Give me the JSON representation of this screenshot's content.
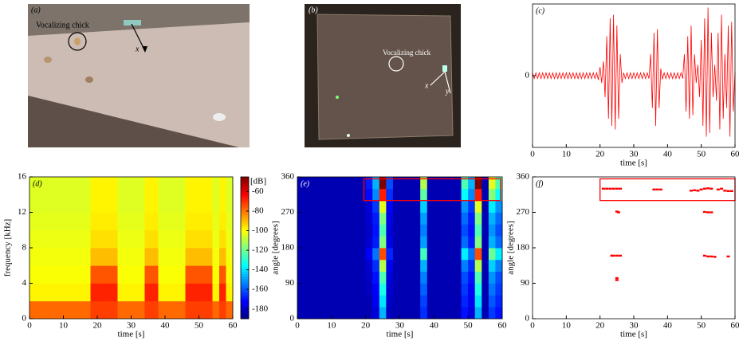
{
  "photos": [
    {
      "panel_label": "(a)",
      "annotation": "Vocalizing chick",
      "axis_labels": [
        "x"
      ]
    },
    {
      "panel_label": "(b)",
      "annotation": "Vocalizing chick",
      "axis_labels": [
        "x",
        "y"
      ]
    }
  ],
  "chart_data": [
    {
      "type": "line",
      "panel_label": "(c)",
      "xlabel": "time [s]",
      "color": "#ff0000",
      "xlim": [
        0,
        60
      ],
      "xticks": [
        0,
        10,
        20,
        30,
        40,
        50,
        60
      ],
      "ylim": [
        -1,
        1
      ],
      "yticks": [
        0
      ],
      "x": [
        0,
        0.5,
        1,
        1.5,
        2,
        2.5,
        3,
        3.5,
        4,
        4.5,
        5,
        5.5,
        6,
        6.5,
        7,
        7.5,
        8,
        8.5,
        9,
        9.5,
        10,
        10.5,
        11,
        11.5,
        12,
        12.5,
        13,
        13.5,
        14,
        14.5,
        15,
        15.5,
        16,
        16.5,
        17,
        17.5,
        18,
        18.5,
        19,
        19.5,
        20,
        20.5,
        21,
        21.5,
        22,
        22.5,
        23,
        23.5,
        24,
        24.5,
        25,
        25.5,
        26,
        26.5,
        27,
        27.5,
        28,
        28.5,
        29,
        29.5,
        30,
        30.5,
        31,
        31.5,
        32,
        32.5,
        33,
        33.5,
        34,
        34.5,
        35,
        35.5,
        36,
        36.5,
        37,
        37.5,
        38,
        38.5,
        39,
        39.5,
        40,
        40.5,
        41,
        41.5,
        42,
        42.5,
        43,
        43.5,
        44,
        44.5,
        45,
        45.5,
        46,
        46.5,
        47,
        47.5,
        48,
        48.5,
        49,
        49.5,
        50,
        50.5,
        51,
        51.5,
        52,
        52.5,
        53,
        53.5,
        54,
        54.5,
        55,
        55.5,
        56,
        56.5,
        57,
        57.5,
        58,
        58.5,
        59,
        59.5,
        60
      ],
      "values": [
        0.04,
        -0.04,
        0.04,
        -0.04,
        0.04,
        -0.04,
        0.04,
        -0.04,
        0.04,
        -0.04,
        0.04,
        -0.04,
        0.04,
        -0.04,
        0.04,
        -0.04,
        0.04,
        -0.04,
        0.04,
        -0.04,
        0.04,
        -0.04,
        0.04,
        -0.04,
        0.04,
        -0.04,
        0.04,
        -0.04,
        0.04,
        -0.04,
        0.04,
        -0.04,
        0.04,
        -0.04,
        0.04,
        -0.04,
        0.04,
        -0.04,
        0.04,
        -0.06,
        0.12,
        -0.1,
        0.2,
        -0.3,
        0.55,
        -0.6,
        0.8,
        -0.7,
        0.85,
        -0.75,
        0.7,
        -0.6,
        0.3,
        -0.1,
        0.04,
        -0.04,
        0.04,
        -0.04,
        0.04,
        -0.04,
        0.04,
        -0.04,
        0.04,
        -0.04,
        0.04,
        -0.04,
        0.04,
        -0.04,
        0.04,
        -0.04,
        0.3,
        -0.45,
        0.6,
        -0.7,
        0.65,
        -0.45,
        0.1,
        -0.05,
        0.04,
        -0.04,
        0.04,
        -0.04,
        0.04,
        -0.04,
        0.04,
        -0.04,
        0.04,
        -0.04,
        0.04,
        -0.04,
        0.3,
        -0.5,
        0.55,
        -0.6,
        0.7,
        -0.55,
        0.3,
        -0.1,
        0.15,
        -0.3,
        0.5,
        -0.7,
        0.8,
        -0.85,
        0.95,
        -0.8,
        0.6,
        -0.3,
        0.15,
        -0.35,
        0.6,
        -0.75,
        0.85,
        -0.6,
        0.3,
        -0.45,
        0.7,
        -0.85,
        0.75,
        -0.5,
        0.05
      ]
    },
    {
      "type": "heatmap",
      "panel_label": "(d)",
      "panel_label_color": "#000000",
      "xlabel": "time [s]",
      "ylabel": "frequency [kHz]",
      "xlim": [
        0,
        60
      ],
      "xticks": [
        0,
        10,
        20,
        30,
        40,
        50,
        60
      ],
      "ylim": [
        0,
        16
      ],
      "yticks": [
        0,
        4,
        8,
        12,
        16
      ],
      "colormap": "jet",
      "clim": [
        -190,
        -45
      ],
      "colorbar": {
        "label": "[dB]",
        "ticks": [
          -60,
          -80,
          -100,
          -120,
          -140,
          -160,
          -180
        ]
      },
      "xbins": [
        0,
        2,
        4,
        6,
        8,
        10,
        12,
        14,
        16,
        18,
        20,
        22,
        24,
        26,
        28,
        30,
        32,
        34,
        36,
        38,
        40,
        42,
        44,
        46,
        48,
        50,
        52,
        54,
        56,
        58,
        60
      ],
      "ybins": [
        0,
        2,
        4,
        6,
        8,
        10,
        12,
        14,
        16
      ],
      "values": [
        [
          -78,
          -78,
          -78,
          -78,
          -78,
          -78,
          -78,
          -78,
          -78,
          -72,
          -72,
          -72,
          -72,
          -78,
          -78,
          -78,
          -78,
          -72,
          -72,
          -78,
          -78,
          -78,
          -78,
          -72,
          -72,
          -72,
          -72,
          -78,
          -72,
          -78
        ],
        [
          -98,
          -98,
          -98,
          -98,
          -98,
          -98,
          -98,
          -98,
          -98,
          -68,
          -68,
          -68,
          -68,
          -98,
          -98,
          -98,
          -98,
          -68,
          -68,
          -98,
          -98,
          -98,
          -98,
          -68,
          -68,
          -68,
          -68,
          -98,
          -68,
          -98
        ],
        [
          -100,
          -100,
          -100,
          -100,
          -100,
          -100,
          -100,
          -100,
          -100,
          -75,
          -75,
          -75,
          -75,
          -100,
          -100,
          -100,
          -100,
          -75,
          -75,
          -100,
          -100,
          -100,
          -100,
          -75,
          -75,
          -75,
          -75,
          -100,
          -75,
          -100
        ],
        [
          -101,
          -101,
          -101,
          -101,
          -101,
          -101,
          -101,
          -101,
          -101,
          -90,
          -90,
          -90,
          -90,
          -101,
          -101,
          -101,
          -101,
          -90,
          -90,
          -101,
          -101,
          -101,
          -101,
          -90,
          -90,
          -90,
          -90,
          -101,
          -90,
          -101
        ],
        [
          -102,
          -102,
          -102,
          -102,
          -102,
          -102,
          -102,
          -102,
          -102,
          -95,
          -95,
          -95,
          -95,
          -102,
          -102,
          -102,
          -102,
          -95,
          -95,
          -102,
          -102,
          -102,
          -102,
          -95,
          -95,
          -95,
          -95,
          -102,
          -95,
          -102
        ],
        [
          -103,
          -103,
          -103,
          -103,
          -103,
          -103,
          -103,
          -103,
          -103,
          -97,
          -97,
          -97,
          -97,
          -103,
          -103,
          -103,
          -103,
          -97,
          -97,
          -103,
          -103,
          -103,
          -103,
          -97,
          -97,
          -97,
          -97,
          -103,
          -97,
          -103
        ],
        [
          -104,
          -104,
          -104,
          -104,
          -104,
          -104,
          -104,
          -104,
          -104,
          -98,
          -98,
          -98,
          -98,
          -104,
          -104,
          -104,
          -104,
          -98,
          -98,
          -104,
          -104,
          -104,
          -104,
          -98,
          -98,
          -98,
          -98,
          -104,
          -98,
          -104
        ],
        [
          -104,
          -104,
          -104,
          -104,
          -104,
          -104,
          -104,
          -104,
          -104,
          -98,
          -98,
          -98,
          -98,
          -104,
          -104,
          -104,
          -104,
          -98,
          -98,
          -104,
          -104,
          -104,
          -104,
          -98,
          -98,
          -98,
          -98,
          -104,
          -98,
          -104
        ]
      ]
    },
    {
      "type": "heatmap",
      "panel_label": "(e)",
      "panel_label_color": "#ffffff",
      "xlabel": "time [s]",
      "ylabel": "angle [degrees]",
      "xlim": [
        0,
        60
      ],
      "xticks": [
        0,
        10,
        20,
        30,
        40,
        50,
        60
      ],
      "ylim": [
        0,
        360
      ],
      "yticks": [
        0,
        90,
        180,
        270,
        360
      ],
      "colormap": "jet",
      "clim": [
        0,
        1
      ],
      "box": {
        "x": [
          19.5,
          59.5
        ],
        "y": [
          300,
          355
        ],
        "color": "#ff0000"
      },
      "xbins": [
        0,
        2,
        4,
        6,
        8,
        10,
        12,
        14,
        16,
        18,
        20,
        22,
        24,
        26,
        28,
        30,
        32,
        34,
        36,
        38,
        40,
        42,
        44,
        46,
        48,
        50,
        52,
        54,
        56,
        58,
        60
      ],
      "ybins": [
        0,
        30,
        60,
        90,
        120,
        150,
        180,
        210,
        240,
        270,
        300,
        330,
        360
      ],
      "values": [
        [
          0.05,
          0.05,
          0.05,
          0.05,
          0.05,
          0.05,
          0.05,
          0.05,
          0.05,
          0.05,
          0.05,
          0.09,
          0.3,
          0.06,
          0.05,
          0.05,
          0.05,
          0.05,
          0.17,
          0.05,
          0.05,
          0.05,
          0.05,
          0.05,
          0.14,
          0.09,
          0.3,
          0.05,
          0.18,
          0.14
        ],
        [
          0.05,
          0.05,
          0.05,
          0.05,
          0.05,
          0.05,
          0.05,
          0.05,
          0.05,
          0.05,
          0.05,
          0.11,
          0.35,
          0.07,
          0.05,
          0.05,
          0.05,
          0.05,
          0.19,
          0.05,
          0.05,
          0.05,
          0.05,
          0.05,
          0.16,
          0.11,
          0.35,
          0.05,
          0.21,
          0.16
        ],
        [
          0.05,
          0.05,
          0.05,
          0.05,
          0.05,
          0.05,
          0.05,
          0.05,
          0.05,
          0.05,
          0.06,
          0.12,
          0.4,
          0.08,
          0.05,
          0.05,
          0.05,
          0.05,
          0.22,
          0.05,
          0.05,
          0.05,
          0.05,
          0.05,
          0.18,
          0.12,
          0.4,
          0.05,
          0.24,
          0.18
        ],
        [
          0.05,
          0.05,
          0.05,
          0.05,
          0.05,
          0.05,
          0.05,
          0.05,
          0.05,
          0.05,
          0.07,
          0.14,
          0.45,
          0.09,
          0.05,
          0.05,
          0.05,
          0.05,
          0.25,
          0.05,
          0.05,
          0.05,
          0.05,
          0.05,
          0.2,
          0.14,
          0.45,
          0.05,
          0.27,
          0.2
        ],
        [
          0.05,
          0.05,
          0.05,
          0.05,
          0.05,
          0.05,
          0.05,
          0.05,
          0.05,
          0.05,
          0.08,
          0.17,
          0.55,
          0.11,
          0.05,
          0.05,
          0.05,
          0.05,
          0.3,
          0.05,
          0.05,
          0.05,
          0.05,
          0.05,
          0.25,
          0.17,
          0.55,
          0.05,
          0.33,
          0.25
        ],
        [
          0.05,
          0.05,
          0.05,
          0.05,
          0.05,
          0.05,
          0.05,
          0.05,
          0.05,
          0.05,
          0.12,
          0.24,
          0.8,
          0.16,
          0.05,
          0.05,
          0.05,
          0.05,
          0.44,
          0.05,
          0.05,
          0.05,
          0.05,
          0.05,
          0.36,
          0.24,
          0.8,
          0.05,
          0.48,
          0.36
        ],
        [
          0.05,
          0.05,
          0.05,
          0.05,
          0.05,
          0.05,
          0.05,
          0.05,
          0.05,
          0.05,
          0.08,
          0.15,
          0.5,
          0.1,
          0.05,
          0.05,
          0.05,
          0.05,
          0.28,
          0.05,
          0.05,
          0.05,
          0.05,
          0.05,
          0.23,
          0.15,
          0.5,
          0.05,
          0.3,
          0.23
        ],
        [
          0.05,
          0.05,
          0.05,
          0.05,
          0.05,
          0.05,
          0.05,
          0.05,
          0.05,
          0.05,
          0.07,
          0.14,
          0.45,
          0.09,
          0.05,
          0.05,
          0.05,
          0.05,
          0.25,
          0.05,
          0.05,
          0.05,
          0.05,
          0.05,
          0.2,
          0.14,
          0.45,
          0.05,
          0.27,
          0.2
        ],
        [
          0.05,
          0.05,
          0.05,
          0.05,
          0.05,
          0.05,
          0.05,
          0.05,
          0.05,
          0.05,
          0.08,
          0.15,
          0.5,
          0.1,
          0.05,
          0.05,
          0.05,
          0.05,
          0.28,
          0.05,
          0.05,
          0.05,
          0.05,
          0.05,
          0.23,
          0.15,
          0.5,
          0.05,
          0.3,
          0.23
        ],
        [
          0.05,
          0.05,
          0.05,
          0.05,
          0.05,
          0.05,
          0.05,
          0.05,
          0.05,
          0.05,
          0.09,
          0.18,
          0.6,
          0.12,
          0.05,
          0.05,
          0.05,
          0.05,
          0.33,
          0.05,
          0.05,
          0.05,
          0.05,
          0.05,
          0.27,
          0.18,
          0.6,
          0.05,
          0.36,
          0.27
        ],
        [
          0.05,
          0.05,
          0.05,
          0.05,
          0.05,
          0.05,
          0.05,
          0.05,
          0.05,
          0.05,
          0.13,
          0.26,
          0.85,
          0.17,
          0.05,
          0.05,
          0.05,
          0.05,
          0.47,
          0.05,
          0.05,
          0.05,
          0.05,
          0.05,
          0.38,
          0.26,
          0.85,
          0.05,
          0.51,
          0.38
        ],
        [
          0.05,
          0.05,
          0.05,
          0.05,
          0.05,
          0.05,
          0.05,
          0.05,
          0.05,
          0.05,
          0.15,
          0.3,
          1,
          0.2,
          0.05,
          0.05,
          0.05,
          0.05,
          0.55,
          0.05,
          0.05,
          0.05,
          0.05,
          0.05,
          0.45,
          0.3,
          1,
          0.05,
          0.6,
          0.45
        ]
      ]
    },
    {
      "type": "scatter",
      "panel_label": "(f)",
      "xlabel": "time [s]",
      "ylabel": "angle [degrees]",
      "color": "#ff0000",
      "xlim": [
        0,
        60
      ],
      "xticks": [
        0,
        10,
        20,
        30,
        40,
        50,
        60
      ],
      "ylim": [
        0,
        360
      ],
      "yticks": [
        0,
        90,
        180,
        270,
        360
      ],
      "box": {
        "x": [
          20,
          60
        ],
        "y": [
          300,
          355
        ],
        "color": "#ff0000"
      },
      "x": [
        21,
        22,
        23,
        24,
        25,
        26,
        25,
        25.5,
        23.5,
        24,
        25,
        26,
        25,
        25,
        36,
        37,
        38,
        47,
        48,
        49,
        50,
        51,
        52,
        53,
        51,
        52,
        53,
        51,
        52,
        53,
        54,
        55,
        56,
        57,
        58,
        59,
        58
      ],
      "values": [
        330,
        330,
        330,
        330,
        330,
        330,
        272,
        270,
        160,
        160,
        160,
        160,
        103,
        98,
        328,
        328,
        328,
        325,
        326,
        325,
        328,
        330,
        331,
        330,
        271,
        270,
        270,
        160,
        158,
        158,
        157,
        328,
        330,
        325,
        324,
        324,
        158
      ]
    }
  ]
}
